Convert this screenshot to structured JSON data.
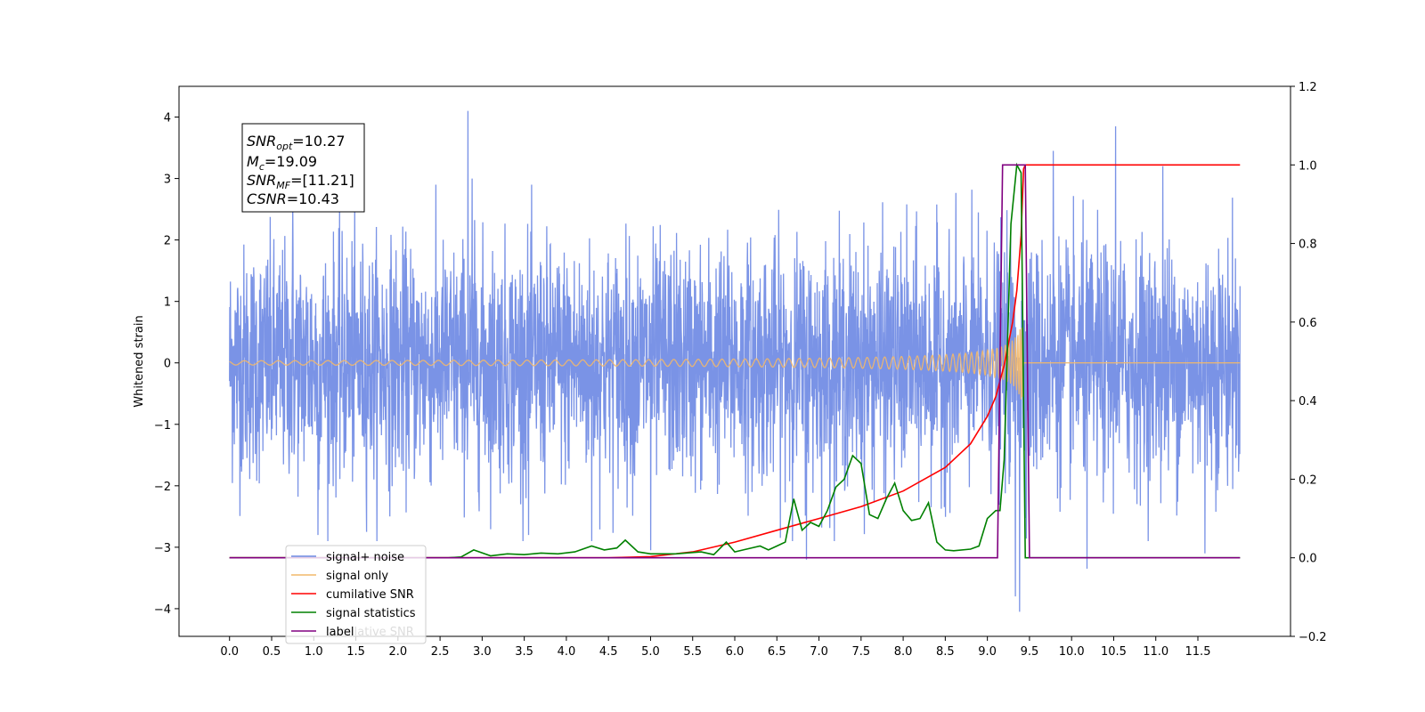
{
  "chart_data": {
    "type": "line",
    "ylabel_left": "Whitened strain",
    "xlim": [
      -0.6,
      12.6
    ],
    "ylim_left": [
      -4.45,
      4.5
    ],
    "ylim_right": [
      -0.2,
      1.2
    ],
    "x_ticks": [
      "0.0",
      "0.5",
      "1.0",
      "1.5",
      "2.0",
      "2.5",
      "3.0",
      "3.5",
      "4.0",
      "4.5",
      "5.0",
      "5.5",
      "6.0",
      "6.5",
      "7.0",
      "7.5",
      "8.0",
      "8.5",
      "9.0",
      "9.5",
      "10.0",
      "10.5",
      "11.0",
      "11.5"
    ],
    "y_left_ticks": [
      "4",
      "3",
      "2",
      "1",
      "0",
      "−1",
      "−2",
      "−3",
      "−4"
    ],
    "y_right_ticks": [
      "1.2",
      "1.0",
      "0.8",
      "0.6",
      "0.4",
      "0.2",
      "0.0",
      "−0.2"
    ],
    "annotation": {
      "line1_label": "SNR",
      "line1_sub": "opt",
      "line1_value": "=10.27",
      "line2_label": "M",
      "line2_sub": "c",
      "line2_value": "=19.09",
      "line3_label": "SNR",
      "line3_sub": "MF",
      "line3_value": "=[11.21]",
      "line4_label": "CSNR",
      "line4_value": "=10.43"
    },
    "legend": {
      "placement": "lower-left",
      "items": [
        "signal+ noise",
        "signal only",
        "cumilative SNR",
        "signal statistics",
        "label"
      ],
      "hidden_text": "cumilative SNR"
    },
    "series": [
      {
        "name": "signal+ noise",
        "axis": "left",
        "color": "#6b87e3",
        "x_range": [
          0.0,
          12.0
        ],
        "note_std": 0.95,
        "peaks": [
          [
            0.75,
            2.6
          ],
          [
            2.83,
            4.1
          ],
          [
            2.88,
            3.0
          ],
          [
            10.52,
            3.85
          ],
          [
            11.08,
            3.2
          ],
          [
            9.78,
            3.45
          ],
          [
            9.33,
            -3.8
          ],
          [
            9.38,
            -4.05
          ],
          [
            6.85,
            -3.2
          ],
          [
            10.18,
            -3.35
          ],
          [
            11.58,
            -3.1
          ],
          [
            3.55,
            -2.8
          ],
          [
            1.05,
            -2.8
          ],
          [
            4.3,
            -2.9
          ],
          [
            5.0,
            -3.05
          ]
        ]
      },
      {
        "name": "signal only",
        "axis": "left",
        "color": "#f2b86a",
        "x_range": [
          0.0,
          12.0
        ],
        "merger_time": 9.43,
        "peak_amplitude": 0.8
      },
      {
        "name": "cumilative SNR",
        "axis": "right",
        "color": "#ff0000",
        "x": [
          0.0,
          4.5,
          5.0,
          5.5,
          6.0,
          6.5,
          7.0,
          7.5,
          8.0,
          8.5,
          8.8,
          9.0,
          9.1,
          9.2,
          9.3,
          9.35,
          9.4,
          9.43,
          9.45,
          12.0
        ],
        "y": [
          0.0,
          0.0,
          0.003,
          0.015,
          0.04,
          0.07,
          0.1,
          0.13,
          0.17,
          0.23,
          0.29,
          0.36,
          0.41,
          0.49,
          0.6,
          0.68,
          0.82,
          0.99,
          1.0,
          1.0
        ]
      },
      {
        "name": "signal statistics",
        "axis": "right",
        "color": "#008000",
        "x": [
          0.0,
          2.6,
          2.75,
          2.9,
          3.1,
          3.3,
          3.5,
          3.7,
          3.9,
          4.1,
          4.3,
          4.45,
          4.6,
          4.7,
          4.85,
          5.0,
          5.3,
          5.6,
          5.75,
          5.9,
          6.0,
          6.1,
          6.3,
          6.4,
          6.5,
          6.6,
          6.7,
          6.8,
          6.9,
          7.0,
          7.1,
          7.2,
          7.3,
          7.4,
          7.5,
          7.6,
          7.7,
          7.8,
          7.9,
          8.0,
          8.1,
          8.2,
          8.3,
          8.4,
          8.5,
          8.6,
          8.8,
          8.9,
          9.0,
          9.1,
          9.15,
          9.2,
          9.28,
          9.35,
          9.4,
          9.45,
          9.5,
          12.0
        ],
        "y": [
          0.0,
          0.0,
          0.002,
          0.02,
          0.005,
          0.01,
          0.008,
          0.012,
          0.01,
          0.015,
          0.03,
          0.02,
          0.025,
          0.045,
          0.015,
          0.01,
          0.01,
          0.015,
          0.008,
          0.04,
          0.015,
          0.02,
          0.03,
          0.02,
          0.03,
          0.04,
          0.15,
          0.07,
          0.09,
          0.08,
          0.12,
          0.18,
          0.2,
          0.26,
          0.24,
          0.11,
          0.1,
          0.15,
          0.19,
          0.12,
          0.095,
          0.1,
          0.14,
          0.04,
          0.02,
          0.018,
          0.022,
          0.03,
          0.1,
          0.12,
          0.12,
          0.25,
          0.85,
          1.0,
          0.98,
          0.0,
          0.0,
          0.0
        ]
      },
      {
        "name": "label",
        "axis": "right",
        "color": "#800080",
        "x": [
          0.0,
          9.12,
          9.18,
          9.45,
          9.5,
          12.0
        ],
        "y": [
          0.0,
          0.0,
          1.0,
          1.0,
          0.0,
          0.0
        ]
      }
    ],
    "grid": false
  }
}
